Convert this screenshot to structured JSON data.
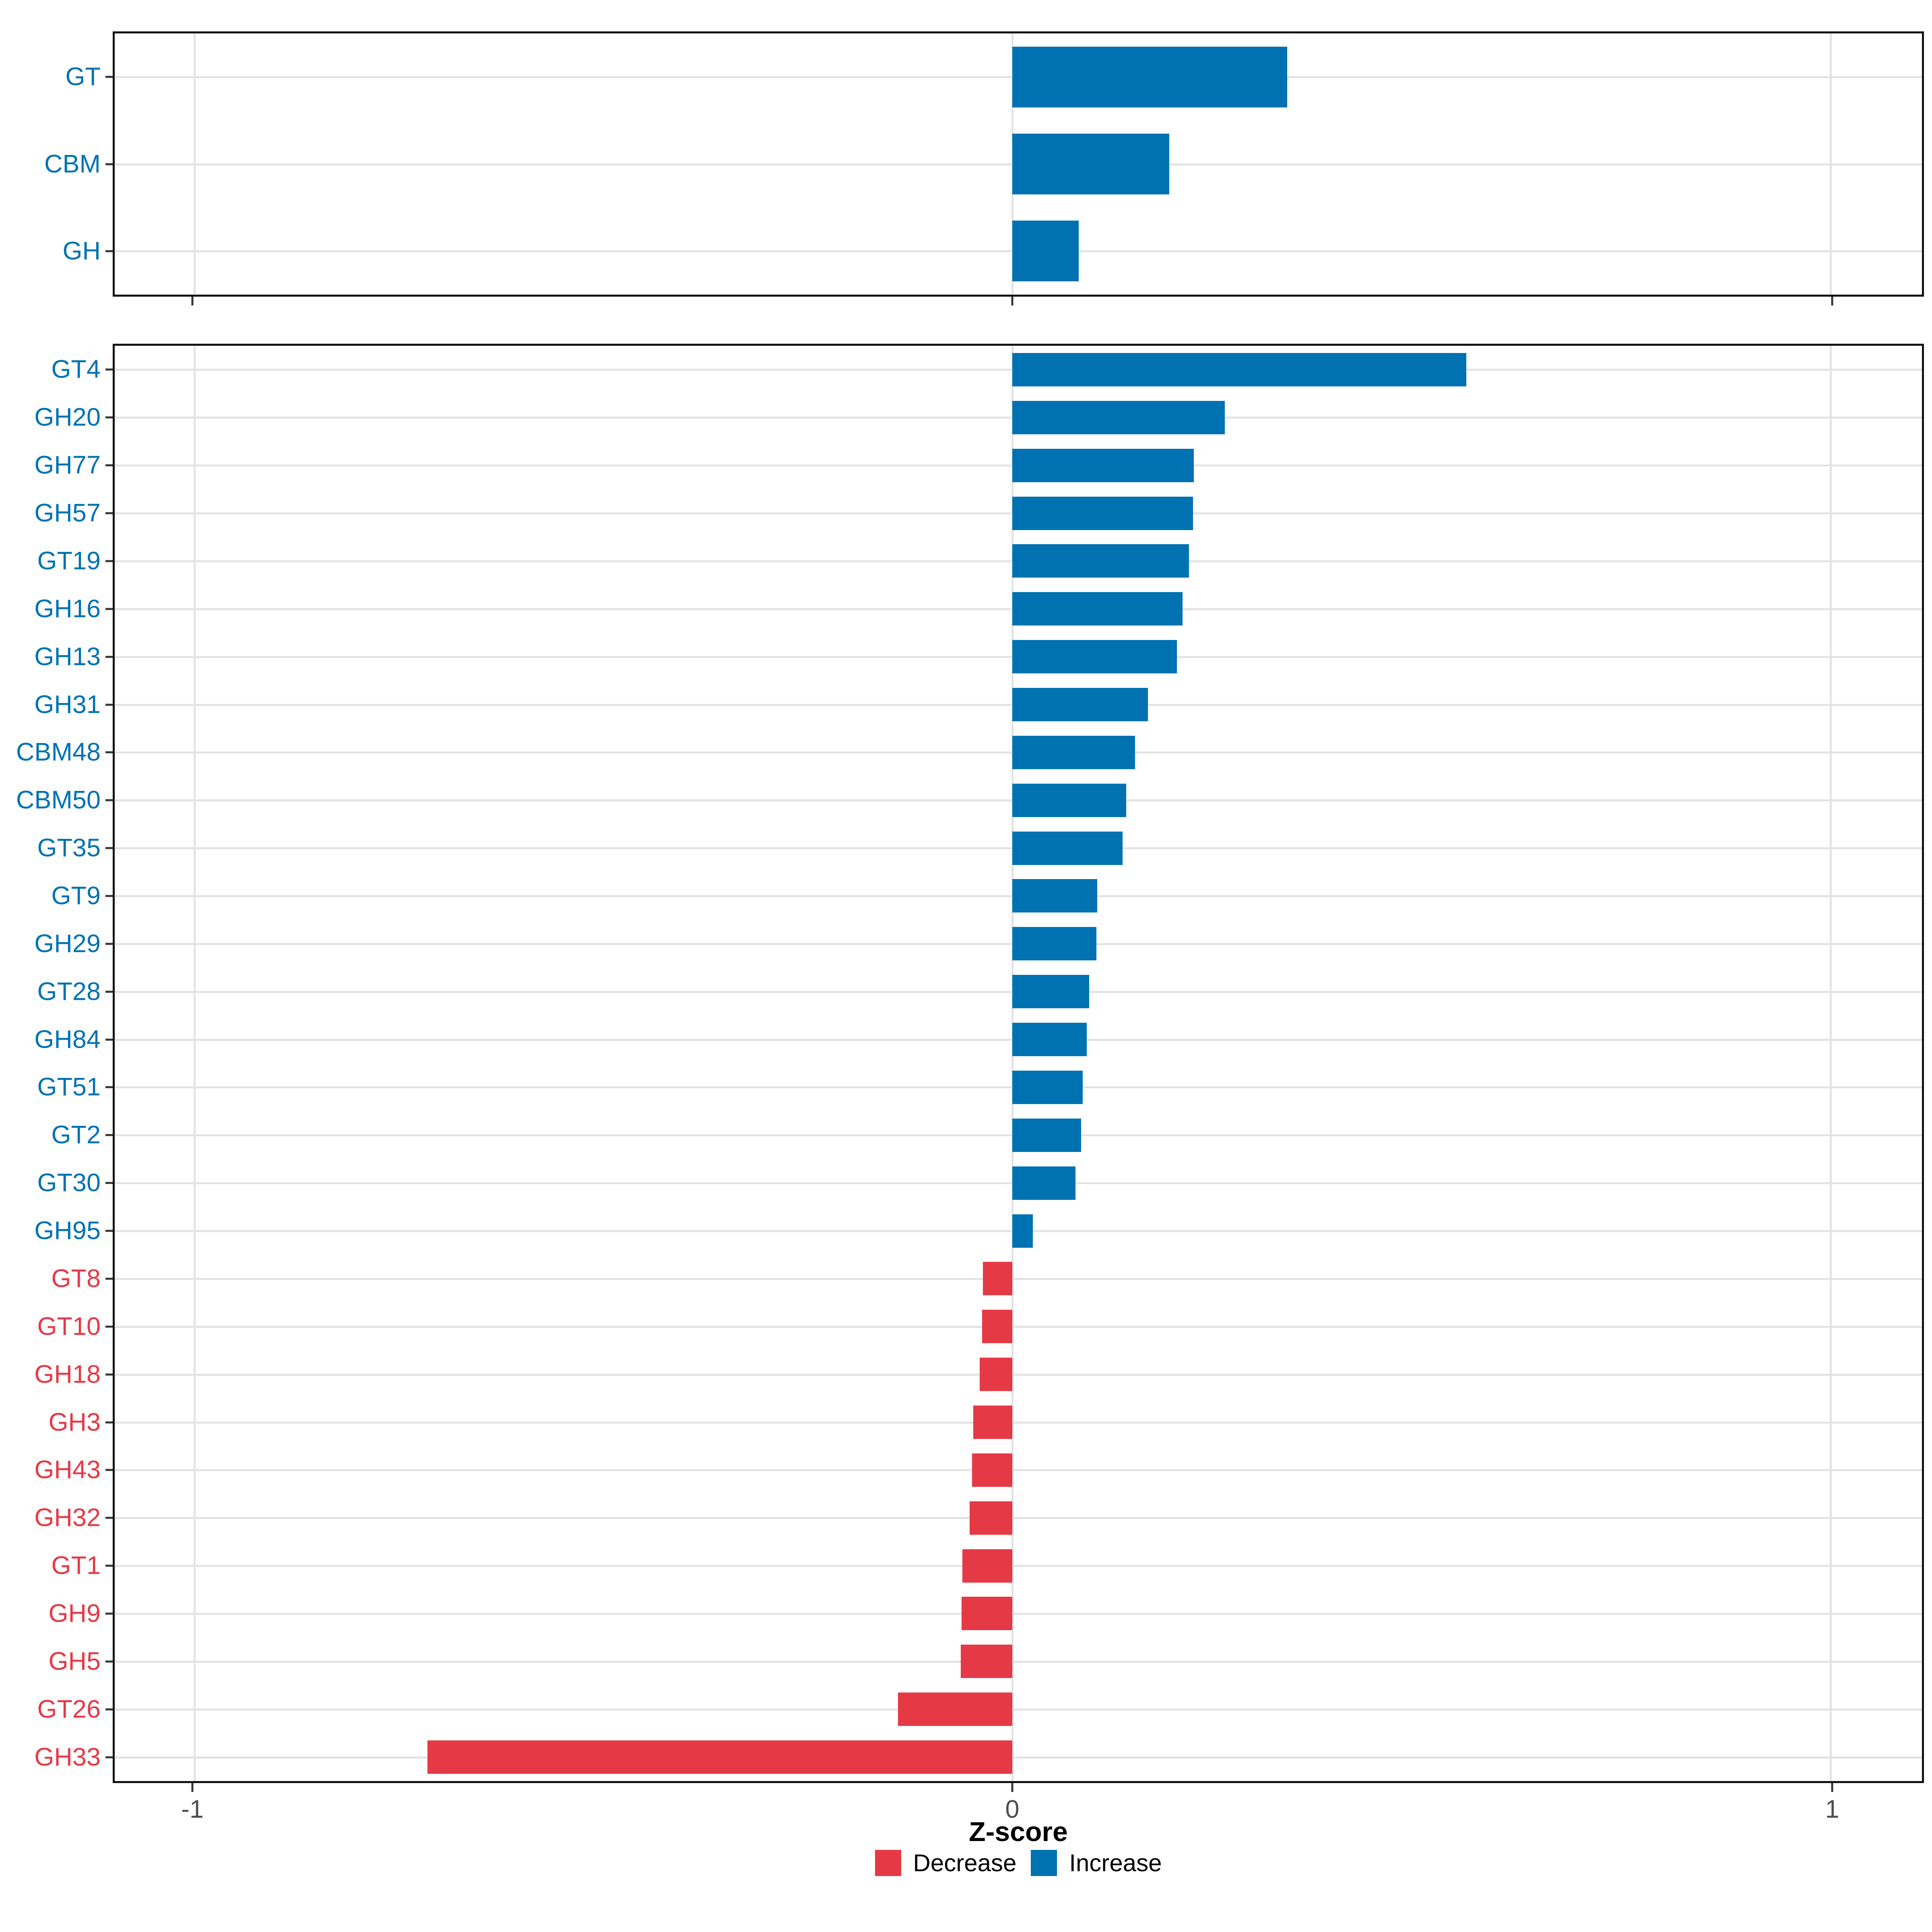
{
  "chart_data": [
    {
      "type": "bar",
      "orientation": "horizontal",
      "panel": "top",
      "title": "",
      "categories": [
        "GT",
        "CBM",
        "GH"
      ],
      "values": [
        0.336,
        0.192,
        0.081
      ],
      "increase_color": "#0072B2",
      "decrease_color": "#E63946",
      "xlim": [
        -1.0972,
        1.1119
      ],
      "xticks": [
        -1,
        0,
        1
      ],
      "xtick_labels": [
        "-1",
        "0",
        "1"
      ],
      "grid": true,
      "legend_position": "bottom"
    },
    {
      "type": "bar",
      "orientation": "horizontal",
      "panel": "bottom",
      "title": "",
      "categories": [
        "GT4",
        "GH20",
        "GH77",
        "GH57",
        "GT19",
        "GH16",
        "GH13",
        "GH31",
        "CBM48",
        "CBM50",
        "GT35",
        "GT9",
        "GH29",
        "GT28",
        "GH84",
        "GT51",
        "GT2",
        "GT30",
        "GH95",
        "GT8",
        "GT10",
        "GH18",
        "GH3",
        "GH43",
        "GH32",
        "GT1",
        "GH9",
        "GH5",
        "GT26",
        "GH33"
      ],
      "values": [
        0.555,
        0.26,
        0.222,
        0.221,
        0.216,
        0.208,
        0.201,
        0.166,
        0.15,
        0.139,
        0.135,
        0.104,
        0.103,
        0.094,
        0.091,
        0.086,
        0.084,
        0.077,
        0.025,
        -0.036,
        -0.037,
        -0.04,
        -0.048,
        -0.049,
        -0.052,
        -0.061,
        -0.062,
        -0.063,
        -0.14,
        -0.715
      ],
      "increase_color": "#0072B2",
      "decrease_color": "#E63946",
      "xlim": [
        -1.0972,
        1.1119
      ],
      "xticks": [
        -1,
        0,
        1
      ],
      "xtick_labels": [
        "-1",
        "0",
        "1"
      ],
      "grid": true,
      "legend_position": "bottom"
    }
  ],
  "axis": {
    "xlabel": "Z-score",
    "tick_labels": [
      "-1",
      "0",
      "1"
    ]
  },
  "legend": {
    "items": [
      {
        "label": "Decrease",
        "color": "#E63946"
      },
      {
        "label": "Increase",
        "color": "#0072B2"
      }
    ]
  },
  "colors": {
    "increase": "#0072B2",
    "decrease": "#E63946",
    "gridline": "#e3e3e3",
    "axis_text": "#4d4d4d",
    "panel_border": "#111111"
  }
}
